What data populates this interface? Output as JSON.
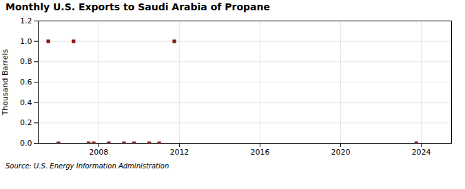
{
  "chart_data": {
    "type": "scatter",
    "title": "Monthly U.S. Exports to Saudi Arabia of Propane",
    "ylabel": "Thousand Barrels",
    "caption": "Source: U.S. Energy Information Administration",
    "x": [
      2005.5,
      2006.0,
      2006.75,
      2007.5,
      2007.75,
      2008.5,
      2009.25,
      2009.75,
      2010.5,
      2011.0,
      2011.75,
      2023.75
    ],
    "values": [
      1.0,
      0.0,
      1.0,
      0.0,
      0.0,
      0.0,
      0.0,
      0.0,
      0.0,
      0.0,
      1.0,
      0.0
    ],
    "color": "#8b1a1a",
    "marker": "square",
    "xlim": [
      2005.0,
      2025.5
    ],
    "xticks": [
      2008,
      2012,
      2016,
      2020,
      2024
    ],
    "ylim": [
      0.0,
      1.2
    ],
    "yticks": [
      {
        "value": 0.0,
        "label": "0.0"
      },
      0.2,
      0.4,
      0.6,
      0.8,
      {
        "value": 1.0,
        "label": "1.0"
      },
      1.2
    ],
    "grid": true
  }
}
